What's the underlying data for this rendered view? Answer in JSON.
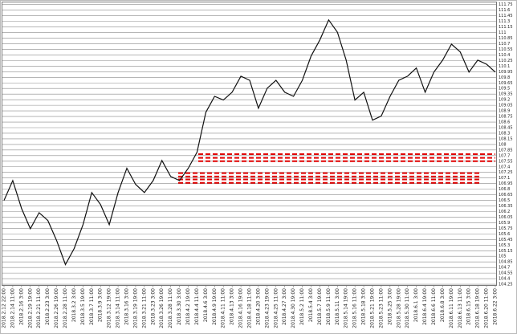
{
  "chart_data": {
    "type": "line",
    "color": "#111111",
    "categories": [
      "2018.2.12 22:00",
      "2018.2.14 11:00",
      "2018.2.16 3:00",
      "2018.2.19 19:00",
      "2018.2.21 11:00",
      "2018.2.23 3:00",
      "2018.2.26 19:00",
      "2018.2.28 11:00",
      "2018.3.2 3:00",
      "2018.3.5 19:00",
      "2018.3.7 11:00",
      "2018.3.9 3:00",
      "2018.3.12 19:00",
      "2018.3.14 11:00",
      "2018.3.16 3:00",
      "2018.3.19 19:00",
      "2018.3.21 11:00",
      "2018.3.23 3:00",
      "2018.3.26 19:00",
      "2018.3.28 11:00",
      "2018.3.30 3:00",
      "2018.4.2 19:00",
      "2018.4.4 11:00",
      "2018.4.6 3:00",
      "2018.4.9 19:00",
      "2018.4.11 11:00",
      "2018.4.13 3:00",
      "2018.4.16 19:00",
      "2018.4.18 11:00",
      "2018.4.20 3:00",
      "2018.4.23 19:00",
      "2018.4.25 11:00",
      "2018.4.27 3:00",
      "2018.4.30 19:00",
      "2018.5.2 11:00",
      "2018.5.4 3:00",
      "2018.5.7 19:00",
      "2018.5.9 11:00",
      "2018.5.11 3:00",
      "2018.5.14 19:00",
      "2018.5.16 11:00",
      "2018.5.18 3:00",
      "2018.5.21 19:00",
      "2018.5.23 11:00",
      "2018.5.25 3:00",
      "2018.5.28 19:00",
      "2018.5.30 11:00",
      "2018.6.1 3:00",
      "2018.6.4 19:00",
      "2018.6.6 11:00",
      "2018.6.8 3:00",
      "2018.6.11 19:00",
      "2018.6.13 11:00",
      "2018.6.15 3:00",
      "2018.6.18 19:00",
      "2018.6.20 11:00",
      "2018.6.22 3:00"
    ],
    "values": [
      106.5,
      107.03,
      106.28,
      105.74,
      106.17,
      105.96,
      105.42,
      104.78,
      105.21,
      105.85,
      106.71,
      106.39,
      105.85,
      106.71,
      107.36,
      106.93,
      106.71,
      107.03,
      107.57,
      107.14,
      107.03,
      107.36,
      107.79,
      108.86,
      109.29,
      109.19,
      109.4,
      109.83,
      109.72,
      108.97,
      109.51,
      109.72,
      109.4,
      109.29,
      109.72,
      110.37,
      110.8,
      111.34,
      111.01,
      110.26,
      109.19,
      109.4,
      108.65,
      108.76,
      109.29,
      109.72,
      109.83,
      110.05,
      109.4,
      109.94,
      110.26,
      110.69,
      110.48,
      109.94,
      110.26,
      110.15,
      109.94
    ],
    "ylim": [
      104.23,
      111.83
    ],
    "yticks": [
      104.25,
      104.4,
      104.55,
      104.7,
      104.85,
      105,
      105.15,
      105.3,
      105.45,
      105.6,
      105.75,
      105.9,
      106.05,
      106.2,
      106.35,
      106.5,
      106.65,
      106.8,
      106.95,
      107.1,
      107.25,
      107.4,
      107.55,
      107.7,
      107.85,
      108,
      108.15,
      108.3,
      108.45,
      108.6,
      108.75,
      108.9,
      109.05,
      109.2,
      109.35,
      109.5,
      109.65,
      109.8,
      109.95,
      110.1,
      110.25,
      110.4,
      110.55,
      110.7,
      110.85,
      111,
      111.15,
      111.3,
      111.45,
      111.6,
      111.75
    ],
    "grid": true,
    "reference_lines": {
      "color": "#e00000",
      "values": [
        107.74,
        107.64,
        107.55,
        107.23,
        107.14,
        107.06,
        106.97
      ]
    }
  }
}
